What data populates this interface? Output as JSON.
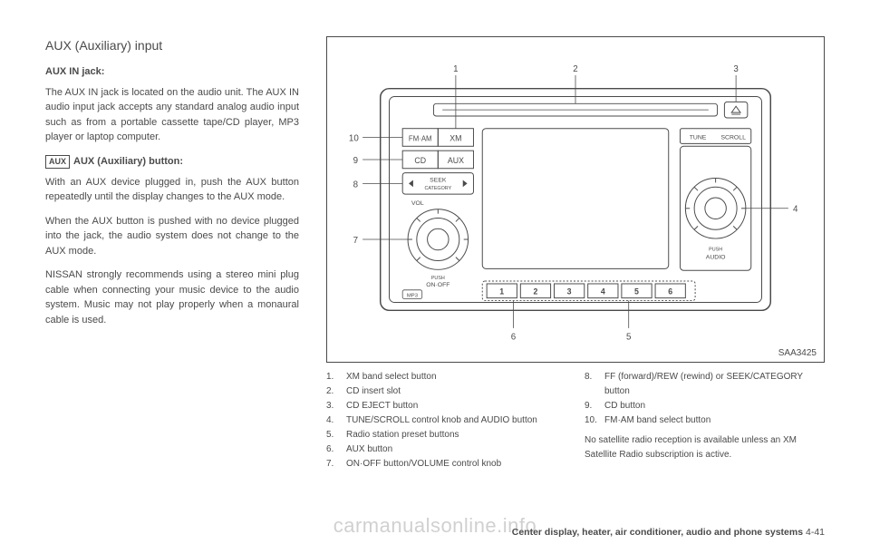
{
  "left": {
    "title": "AUX (Auxiliary) input",
    "subhead1": "AUX IN jack:",
    "para1": "The AUX IN jack is located on the audio unit. The AUX IN audio input jack accepts any standard analog audio input such as from a portable cassette tape/CD player, MP3 player or laptop computer.",
    "aux_icon": "AUX",
    "subhead2": "AUX (Auxiliary) button:",
    "para2": "With an AUX device plugged in, push the AUX button repeatedly until the display changes to the AUX mode.",
    "para3": "When the AUX button is pushed with no device plugged into the jack, the audio system does not change to the AUX mode.",
    "para4": "NISSAN strongly recommends using a stereo mini plug cable when connecting your music device to the audio system. Music may not play properly when a monaural cable is used."
  },
  "figure": {
    "id": "SAA3425",
    "callouts": [
      "1",
      "2",
      "3",
      "4",
      "5",
      "6",
      "7",
      "8",
      "9",
      "10"
    ],
    "buttons": {
      "fmam": "FM·AM",
      "xm": "XM",
      "cd": "CD",
      "aux": "AUX",
      "seek": "SEEK",
      "category": "CATEGORY",
      "vol": "VOL",
      "onoff": "ON·OFF",
      "push1": "PUSH",
      "tune": "TUNE",
      "scroll": "SCROLL",
      "audio": "AUDIO",
      "push2": "PUSH",
      "mp3": "MP3",
      "presets": [
        "1",
        "2",
        "3",
        "4",
        "5",
        "6"
      ]
    }
  },
  "legend_left": [
    {
      "n": "1.",
      "t": "XM band select button"
    },
    {
      "n": "2.",
      "t": "CD insert slot"
    },
    {
      "n": "3.",
      "t": "CD EJECT button"
    },
    {
      "n": "4.",
      "t": "TUNE/SCROLL control knob and AUDIO button"
    },
    {
      "n": "5.",
      "t": "Radio station preset buttons"
    },
    {
      "n": "6.",
      "t": "AUX button"
    },
    {
      "n": "7.",
      "t": "ON·OFF button/VOLUME control knob"
    }
  ],
  "legend_right": [
    {
      "n": "8.",
      "t": "FF (forward)/REW (rewind) or SEEK/CATEGORY button"
    },
    {
      "n": "9.",
      "t": "CD button"
    },
    {
      "n": "10.",
      "t": "FM·AM band select button"
    }
  ],
  "legend_note": "No satellite radio reception is available unless an XM Satellite Radio subscription is active.",
  "footer": {
    "text": "Center display, heater, air conditioner, audio and phone systems",
    "page": "4-41"
  },
  "watermark": "carmanualsonline.info"
}
